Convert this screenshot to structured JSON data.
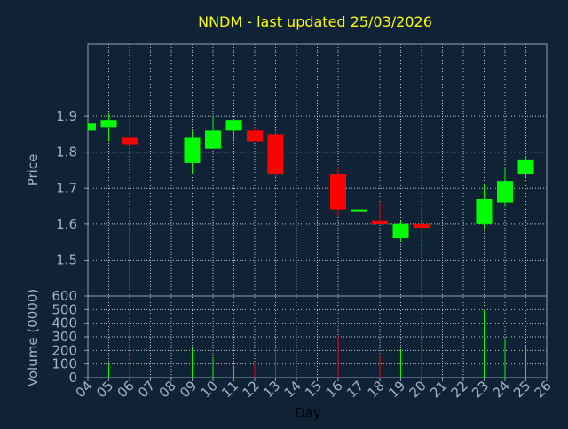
{
  "colors": {
    "background": "#0f2236",
    "axis": "#8fa0b4",
    "grid": "#c8c8c8",
    "title": "#ffff00",
    "label": "#9fb4cc",
    "up": "#00ff00",
    "down": "#ff0000"
  },
  "chart_data": [
    {
      "type": "candlestick",
      "title": "NNDM - last updated 25/03/2026",
      "ylabel": "Price",
      "ylim": [
        1.4,
        2.1
      ],
      "yticks": [
        "1.5",
        "1.6",
        "1.7",
        "1.8",
        "1.9"
      ],
      "grid": true,
      "candles": [
        {
          "day": "04",
          "open": 1.86,
          "close": 1.88,
          "high": 1.88,
          "low": 1.86
        },
        {
          "day": "05",
          "open": 1.87,
          "close": 1.89,
          "high": 1.91,
          "low": 1.83
        },
        {
          "day": "06",
          "open": 1.84,
          "close": 1.82,
          "high": 1.9,
          "low": 1.82
        },
        {
          "day": "09",
          "open": 1.77,
          "close": 1.84,
          "high": 1.86,
          "low": 1.74
        },
        {
          "day": "10",
          "open": 1.81,
          "close": 1.86,
          "high": 1.9,
          "low": 1.81
        },
        {
          "day": "11",
          "open": 1.86,
          "close": 1.89,
          "high": 1.89,
          "low": 1.83
        },
        {
          "day": "12",
          "open": 1.86,
          "close": 1.83,
          "high": 1.87,
          "low": 1.83
        },
        {
          "day": "13",
          "open": 1.85,
          "close": 1.74,
          "high": 1.86,
          "low": 1.73
        },
        {
          "day": "16",
          "open": 1.74,
          "close": 1.64,
          "high": 1.76,
          "low": 1.62
        },
        {
          "day": "17",
          "open": 1.635,
          "close": 1.64,
          "high": 1.69,
          "low": 1.63
        },
        {
          "day": "18",
          "open": 1.61,
          "close": 1.6,
          "high": 1.66,
          "low": 1.6
        },
        {
          "day": "19",
          "open": 1.56,
          "close": 1.6,
          "high": 1.61,
          "low": 1.55
        },
        {
          "day": "20",
          "open": 1.6,
          "close": 1.59,
          "high": 1.6,
          "low": 1.55
        },
        {
          "day": "23",
          "open": 1.6,
          "close": 1.67,
          "high": 1.71,
          "low": 1.59
        },
        {
          "day": "24",
          "open": 1.66,
          "close": 1.72,
          "high": 1.76,
          "low": 1.65
        },
        {
          "day": "25",
          "open": 1.74,
          "close": 1.78,
          "high": 1.79,
          "low": 1.73
        }
      ]
    },
    {
      "type": "bar",
      "ylabel": "Volume (0000)",
      "xlabel": "Day",
      "ylim": [
        0,
        600
      ],
      "yticks": [
        "0",
        "100",
        "200",
        "300",
        "400",
        "500",
        "600"
      ],
      "categories": [
        "04",
        "05",
        "06",
        "07",
        "08",
        "09",
        "10",
        "11",
        "12",
        "13",
        "14",
        "15",
        "16",
        "17",
        "18",
        "19",
        "20",
        "21",
        "22",
        "23",
        "24",
        "25",
        "26"
      ],
      "values": [
        {
          "day": "05",
          "value": 100,
          "direction": "up"
        },
        {
          "day": "06",
          "value": 140,
          "direction": "down"
        },
        {
          "day": "09",
          "value": 215,
          "direction": "up"
        },
        {
          "day": "10",
          "value": 150,
          "direction": "up"
        },
        {
          "day": "11",
          "value": 90,
          "direction": "up"
        },
        {
          "day": "12",
          "value": 110,
          "direction": "down"
        },
        {
          "day": "13",
          "value": 210,
          "direction": "down"
        },
        {
          "day": "16",
          "value": 310,
          "direction": "down"
        },
        {
          "day": "17",
          "value": 180,
          "direction": "up"
        },
        {
          "day": "18",
          "value": 170,
          "direction": "down"
        },
        {
          "day": "19",
          "value": 210,
          "direction": "up"
        },
        {
          "day": "20",
          "value": 210,
          "direction": "down"
        },
        {
          "day": "23",
          "value": 500,
          "direction": "up"
        },
        {
          "day": "24",
          "value": 290,
          "direction": "up"
        },
        {
          "day": "25",
          "value": 240,
          "direction": "up"
        }
      ]
    }
  ]
}
